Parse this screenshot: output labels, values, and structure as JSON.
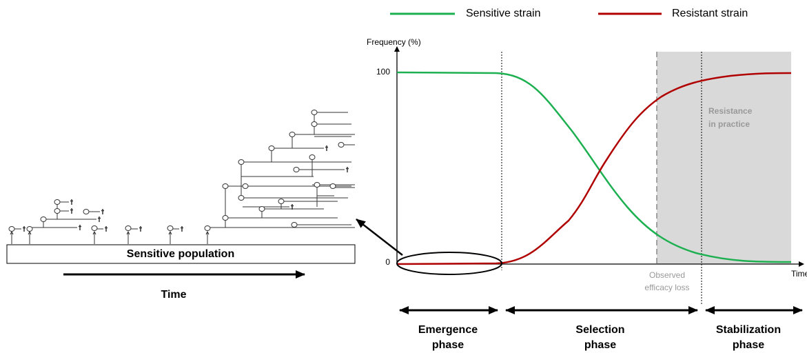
{
  "legend": {
    "sensitive": "Sensitive strain",
    "resistant": "Resistant strain"
  },
  "left_panel": {
    "population": "Sensitive population",
    "time": "Time"
  },
  "chart": {
    "y_axis_label": "Frequency (%)",
    "yticks": [
      0,
      100
    ],
    "x_axis_label": "Time",
    "shaded_label": [
      "Resistance",
      "in practice"
    ],
    "marker_label": [
      "Observed",
      "efficacy loss"
    ]
  },
  "phases": [
    [
      "Emergence",
      "phase"
    ],
    [
      "Selection",
      "phase"
    ],
    [
      "Stabilization",
      "phase"
    ]
  ]
}
